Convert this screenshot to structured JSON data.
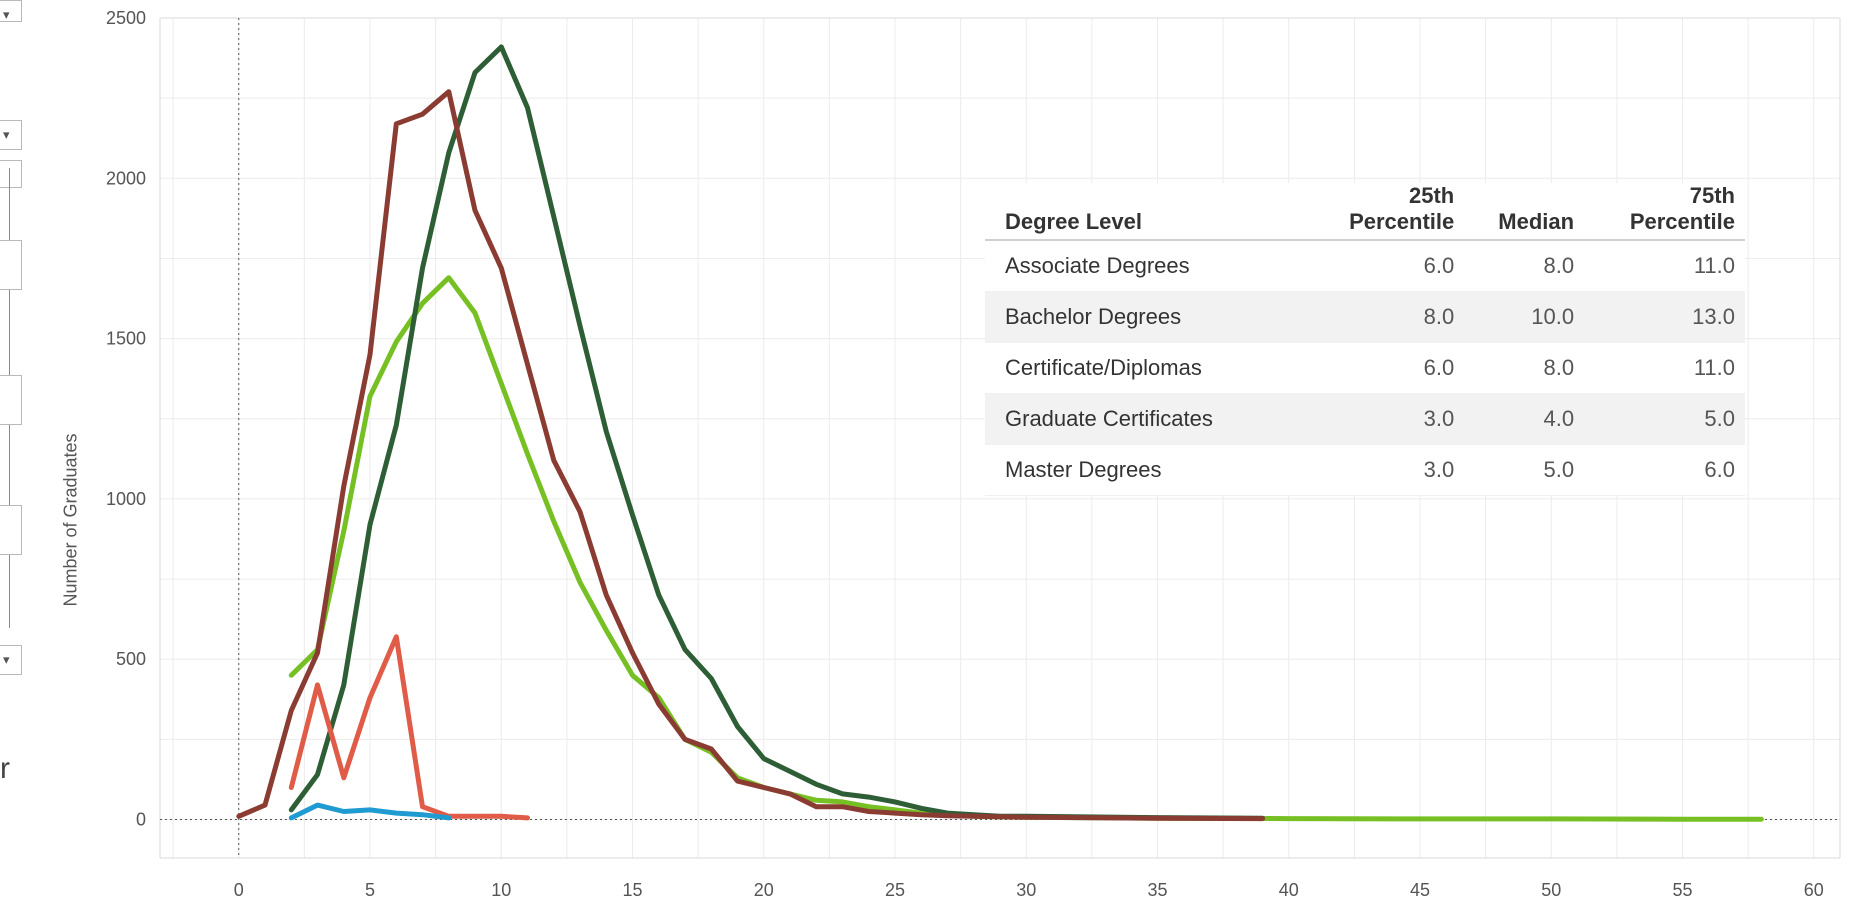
{
  "chart_data": {
    "type": "line",
    "ylabel": "Number of Graduates",
    "xlabel": "",
    "xlim": [
      -3,
      61
    ],
    "ylim": [
      -120,
      2500
    ],
    "x_ticks": [
      "0",
      "5",
      "10",
      "15",
      "20",
      "25",
      "30",
      "35",
      "40",
      "45",
      "50",
      "55",
      "60"
    ],
    "y_ticks": [
      "0",
      "500",
      "1000",
      "1500",
      "2000",
      "2500"
    ],
    "grid": true,
    "series": [
      {
        "color": "#76c024",
        "points": [
          [
            2,
            450
          ],
          [
            3,
            530
          ],
          [
            4,
            900
          ],
          [
            5,
            1320
          ],
          [
            6,
            1490
          ],
          [
            7,
            1610
          ],
          [
            8,
            1690
          ],
          [
            9,
            1580
          ],
          [
            10,
            1360
          ],
          [
            11,
            1140
          ],
          [
            12,
            930
          ],
          [
            13,
            740
          ],
          [
            14,
            590
          ],
          [
            15,
            450
          ],
          [
            16,
            380
          ],
          [
            17,
            250
          ],
          [
            18,
            210
          ],
          [
            19,
            130
          ],
          [
            20,
            100
          ],
          [
            21,
            80
          ],
          [
            22,
            60
          ],
          [
            23,
            55
          ],
          [
            24,
            40
          ],
          [
            25,
            30
          ],
          [
            26,
            20
          ],
          [
            27,
            15
          ],
          [
            28,
            10
          ],
          [
            30,
            7
          ],
          [
            35,
            4
          ],
          [
            40,
            3
          ],
          [
            45,
            2
          ],
          [
            50,
            2
          ],
          [
            55,
            1
          ],
          [
            58,
            1
          ]
        ]
      },
      {
        "color": "#2e5e35",
        "points": [
          [
            2,
            30
          ],
          [
            3,
            140
          ],
          [
            4,
            420
          ],
          [
            5,
            920
          ],
          [
            6,
            1230
          ],
          [
            7,
            1720
          ],
          [
            8,
            2080
          ],
          [
            9,
            2330
          ],
          [
            10,
            2410
          ],
          [
            11,
            2220
          ],
          [
            12,
            1880
          ],
          [
            13,
            1540
          ],
          [
            14,
            1210
          ],
          [
            15,
            950
          ],
          [
            16,
            700
          ],
          [
            17,
            530
          ],
          [
            18,
            440
          ],
          [
            19,
            290
          ],
          [
            20,
            190
          ],
          [
            21,
            150
          ],
          [
            22,
            110
          ],
          [
            23,
            80
          ],
          [
            24,
            70
          ],
          [
            25,
            55
          ],
          [
            26,
            35
          ],
          [
            27,
            20
          ],
          [
            28,
            15
          ],
          [
            29,
            10
          ],
          [
            30,
            10
          ],
          [
            35,
            6
          ],
          [
            39,
            4
          ]
        ]
      },
      {
        "color": "#8b3c32",
        "points": [
          [
            0,
            10
          ],
          [
            1,
            45
          ],
          [
            2,
            340
          ],
          [
            3,
            520
          ],
          [
            4,
            1040
          ],
          [
            5,
            1450
          ],
          [
            6,
            2170
          ],
          [
            7,
            2200
          ],
          [
            8,
            2270
          ],
          [
            9,
            1900
          ],
          [
            10,
            1720
          ],
          [
            11,
            1420
          ],
          [
            12,
            1120
          ],
          [
            13,
            960
          ],
          [
            14,
            700
          ],
          [
            15,
            520
          ],
          [
            16,
            360
          ],
          [
            17,
            250
          ],
          [
            18,
            220
          ],
          [
            19,
            120
          ],
          [
            20,
            100
          ],
          [
            21,
            80
          ],
          [
            22,
            40
          ],
          [
            23,
            40
          ],
          [
            24,
            25
          ],
          [
            25,
            20
          ],
          [
            26,
            15
          ],
          [
            27,
            12
          ],
          [
            28,
            10
          ],
          [
            30,
            7
          ],
          [
            35,
            4
          ],
          [
            39,
            3
          ]
        ]
      },
      {
        "color": "#e05c48",
        "points": [
          [
            2,
            100
          ],
          [
            3,
            420
          ],
          [
            4,
            130
          ],
          [
            5,
            380
          ],
          [
            6,
            570
          ],
          [
            7,
            40
          ],
          [
            8,
            10
          ],
          [
            9,
            10
          ],
          [
            10,
            10
          ],
          [
            11,
            5
          ]
        ]
      },
      {
        "color": "#1f9bd1",
        "points": [
          [
            2,
            5
          ],
          [
            3,
            45
          ],
          [
            4,
            25
          ],
          [
            5,
            30
          ],
          [
            6,
            20
          ],
          [
            7,
            15
          ],
          [
            8,
            5
          ]
        ]
      }
    ]
  },
  "table": {
    "headers": {
      "degree_level": "Degree Level",
      "p25_top": "25th",
      "p25_bottom": "Percentile",
      "median": "Median",
      "p75_top": "75th",
      "p75_bottom": "Percentile"
    },
    "rows": [
      {
        "level": "Associate Degrees",
        "p25": "6.0",
        "median": "8.0",
        "p75": "11.0"
      },
      {
        "level": "Bachelor Degrees",
        "p25": "8.0",
        "median": "10.0",
        "p75": "13.0"
      },
      {
        "level": "Certificate/Diplomas",
        "p25": "6.0",
        "median": "8.0",
        "p75": "11.0"
      },
      {
        "level": "Graduate Certificates",
        "p25": "3.0",
        "median": "4.0",
        "p75": "5.0"
      },
      {
        "level": "Master Degrees",
        "p25": "3.0",
        "median": "5.0",
        "p75": "6.0"
      }
    ]
  },
  "side_panel": {
    "partial_letter": "r"
  }
}
